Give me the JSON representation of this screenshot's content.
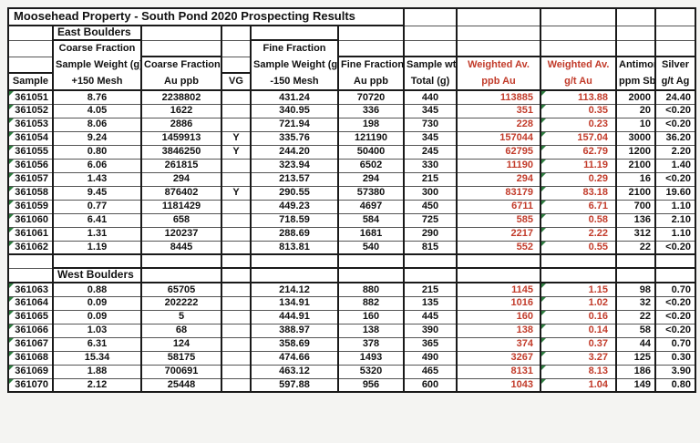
{
  "title": "Moosehead Property - South Pond 2020 Prospecting Results",
  "colors": {
    "weighted_avg_red": "#c23b2a",
    "flag_triangle_green": "#2e7d40"
  },
  "header": {
    "col_sample": {
      "l3": "Sample"
    },
    "col_coarse_wt": {
      "l1": "Coarse Fraction",
      "l2": "Sample Weight (g)",
      "l3": "+150 Mesh"
    },
    "col_coarse_au": {
      "l2": "Coarse Fraction",
      "l3": "Au ppb"
    },
    "col_vg": {
      "l3": "VG"
    },
    "col_fine_wt": {
      "l1": "Fine Fraction",
      "l2": "Sample Weight (g)",
      "l3": "-150 Mesh"
    },
    "col_fine_au": {
      "l2": "Fine Fraction",
      "l3": "Au ppb"
    },
    "col_total": {
      "l2": "Sample wt",
      "l3": "Total (g)"
    },
    "col_wav_ppb": {
      "l2": "Weighted Av.",
      "l3": "ppb Au"
    },
    "col_wav_gt": {
      "l2": "Weighted Av.",
      "l3": "g/t Au"
    },
    "col_sb": {
      "l2": "Antimony",
      "l3": "ppm Sb"
    },
    "col_ag": {
      "l2": "Silver",
      "l3": "g/t Ag"
    }
  },
  "column_keys": [
    "sample",
    "coarse_wt",
    "coarse_au",
    "vg",
    "fine_wt",
    "fine_au",
    "total_wt",
    "wav_ppb",
    "wav_gt",
    "sb",
    "ag"
  ],
  "sections": [
    {
      "label": "East Boulders",
      "rows": [
        [
          "361051",
          "8.76",
          "2238802",
          "",
          "431.24",
          "70720",
          "440",
          "113885",
          "113.88",
          "2000",
          "24.40"
        ],
        [
          "361052",
          "4.05",
          "1622",
          "",
          "340.95",
          "336",
          "345",
          "351",
          "0.35",
          "20",
          "<0.20"
        ],
        [
          "361053",
          "8.06",
          "2886",
          "",
          "721.94",
          "198",
          "730",
          "228",
          "0.23",
          "10",
          "<0.20"
        ],
        [
          "361054",
          "9.24",
          "1459913",
          "Y",
          "335.76",
          "121190",
          "345",
          "157044",
          "157.04",
          "3000",
          "36.20"
        ],
        [
          "361055",
          "0.80",
          "3846250",
          "Y",
          "244.20",
          "50400",
          "245",
          "62795",
          "62.79",
          "1200",
          "2.20"
        ],
        [
          "361056",
          "6.06",
          "261815",
          "",
          "323.94",
          "6502",
          "330",
          "11190",
          "11.19",
          "2100",
          "1.40"
        ],
        [
          "361057",
          "1.43",
          "294",
          "",
          "213.57",
          "294",
          "215",
          "294",
          "0.29",
          "16",
          "<0.20"
        ],
        [
          "361058",
          "9.45",
          "876402",
          "Y",
          "290.55",
          "57380",
          "300",
          "83179",
          "83.18",
          "2100",
          "19.60"
        ],
        [
          "361059",
          "0.77",
          "1181429",
          "",
          "449.23",
          "4697",
          "450",
          "6711",
          "6.71",
          "700",
          "1.10"
        ],
        [
          "361060",
          "6.41",
          "658",
          "",
          "718.59",
          "584",
          "725",
          "585",
          "0.58",
          "136",
          "2.10"
        ],
        [
          "361061",
          "1.31",
          "120237",
          "",
          "288.69",
          "1681",
          "290",
          "2217",
          "2.22",
          "312",
          "1.10"
        ],
        [
          "361062",
          "1.19",
          "8445",
          "",
          "813.81",
          "540",
          "815",
          "552",
          "0.55",
          "22",
          "<0.20"
        ]
      ]
    },
    {
      "label": "West Boulders",
      "rows": [
        [
          "361063",
          "0.88",
          "65705",
          "",
          "214.12",
          "880",
          "215",
          "1145",
          "1.15",
          "98",
          "0.70"
        ],
        [
          "361064",
          "0.09",
          "202222",
          "",
          "134.91",
          "882",
          "135",
          "1016",
          "1.02",
          "32",
          "<0.20"
        ],
        [
          "361065",
          "0.09",
          "5",
          "",
          "444.91",
          "160",
          "445",
          "160",
          "0.16",
          "22",
          "<0.20"
        ],
        [
          "361066",
          "1.03",
          "68",
          "",
          "388.97",
          "138",
          "390",
          "138",
          "0.14",
          "58",
          "<0.20"
        ],
        [
          "361067",
          "6.31",
          "124",
          "",
          "358.69",
          "378",
          "365",
          "374",
          "0.37",
          "44",
          "0.70"
        ],
        [
          "361068",
          "15.34",
          "58175",
          "",
          "474.66",
          "1493",
          "490",
          "3267",
          "3.27",
          "125",
          "0.30"
        ],
        [
          "361069",
          "1.88",
          "700691",
          "",
          "463.12",
          "5320",
          "465",
          "8131",
          "8.13",
          "186",
          "3.90"
        ],
        [
          "361070",
          "2.12",
          "25448",
          "",
          "597.88",
          "956",
          "600",
          "1043",
          "1.04",
          "149",
          "0.80"
        ]
      ]
    }
  ]
}
